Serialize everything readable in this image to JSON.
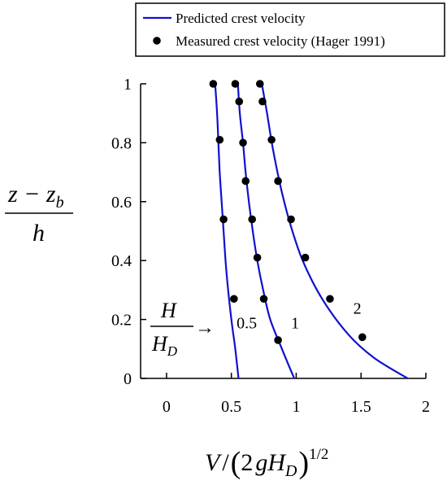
{
  "chart_data": {
    "type": "line",
    "xlim": [
      -0.2,
      2
    ],
    "ylim": [
      0,
      1
    ],
    "xticks": [
      {
        "value": 0,
        "label": "0"
      },
      {
        "value": 0.5,
        "label": "0.5"
      },
      {
        "value": 1,
        "label": "1"
      },
      {
        "value": 1.5,
        "label": "1.5"
      },
      {
        "value": 2,
        "label": "2"
      }
    ],
    "yticks": [
      {
        "value": 0,
        "label": "0"
      },
      {
        "value": 0.2,
        "label": "0.2"
      },
      {
        "value": 0.4,
        "label": "0.4"
      },
      {
        "value": 0.6,
        "label": "0.6"
      },
      {
        "value": 0.8,
        "label": "0.8"
      },
      {
        "value": 1,
        "label": "1"
      }
    ],
    "xlabel": {
      "V": "V",
      "open": "(",
      "two": "2",
      "g": "g",
      "H": "H",
      "D": "D",
      "close": ")",
      "exp": "1/2"
    },
    "ylabel": {
      "num": "z − z",
      "num_sub": "b",
      "den": "h"
    },
    "ratio_label": {
      "num": "H",
      "den": "H",
      "den_sub": "D",
      "arrow": "→"
    },
    "legend": {
      "position": "top-right",
      "line_label": "Predicted crest velocity",
      "marker_label": "Measured crest velocity (Hager 1991)"
    },
    "colors": {
      "line": "#1010d0",
      "marker": "#000000"
    },
    "series": [
      {
        "label": "0.5",
        "curve": [
          [
            0.555,
            0
          ],
          [
            0.53,
            0.1
          ],
          [
            0.5,
            0.2
          ],
          [
            0.475,
            0.3
          ],
          [
            0.455,
            0.4
          ],
          [
            0.44,
            0.5
          ],
          [
            0.425,
            0.6
          ],
          [
            0.41,
            0.7
          ],
          [
            0.4,
            0.8
          ],
          [
            0.39,
            0.9
          ],
          [
            0.375,
            1
          ]
        ],
        "measured": [
          [
            0.52,
            0.27
          ],
          [
            0.44,
            0.54
          ],
          [
            0.41,
            0.81
          ],
          [
            0.36,
            1
          ]
        ]
      },
      {
        "label": "1",
        "curve": [
          [
            0.985,
            0
          ],
          [
            0.89,
            0.1
          ],
          [
            0.8,
            0.2
          ],
          [
            0.745,
            0.3
          ],
          [
            0.7,
            0.4
          ],
          [
            0.665,
            0.5
          ],
          [
            0.635,
            0.6
          ],
          [
            0.61,
            0.7
          ],
          [
            0.59,
            0.8
          ],
          [
            0.565,
            0.9
          ],
          [
            0.55,
            1
          ]
        ],
        "measured": [
          [
            0.86,
            0.13
          ],
          [
            0.75,
            0.27
          ],
          [
            0.7,
            0.41
          ],
          [
            0.66,
            0.54
          ],
          [
            0.61,
            0.67
          ],
          [
            0.59,
            0.8
          ],
          [
            0.56,
            0.94
          ],
          [
            0.53,
            1
          ]
        ]
      },
      {
        "label": "2",
        "curve": [
          [
            1.86,
            0
          ],
          [
            1.6,
            0.07
          ],
          [
            1.4,
            0.15
          ],
          [
            1.2,
            0.27
          ],
          [
            1.05,
            0.4
          ],
          [
            0.95,
            0.53
          ],
          [
            0.88,
            0.65
          ],
          [
            0.82,
            0.78
          ],
          [
            0.775,
            0.9
          ],
          [
            0.735,
            1
          ]
        ],
        "measured": [
          [
            1.51,
            0.14
          ],
          [
            1.26,
            0.27
          ],
          [
            1.07,
            0.41
          ],
          [
            0.96,
            0.54
          ],
          [
            0.86,
            0.67
          ],
          [
            0.81,
            0.81
          ],
          [
            0.74,
            0.94
          ],
          [
            0.72,
            1
          ]
        ]
      }
    ]
  }
}
